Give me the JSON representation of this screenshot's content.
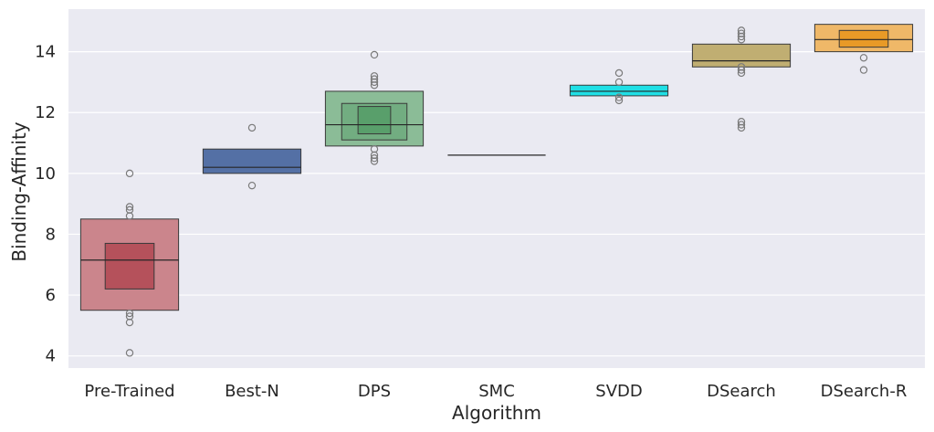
{
  "chart_data": {
    "type": "boxen",
    "title": "",
    "xlabel": "Algorithm",
    "ylabel": "Binding-Affinity",
    "ylim": [
      3.6,
      15.4
    ],
    "yticks": [
      4,
      6,
      8,
      10,
      12,
      14
    ],
    "grid": true,
    "categories": [
      "Pre-Trained",
      "Best-N",
      "DPS",
      "SMC",
      "SVDD",
      "DSearch",
      "DSearch-R"
    ],
    "series": [
      {
        "name": "Pre-Trained",
        "color": "#b5515b",
        "median": 7.15,
        "boxes": [
          [
            5.5,
            8.5
          ],
          [
            6.2,
            7.7
          ]
        ],
        "outliers": [
          4.1,
          5.1,
          5.3,
          5.4,
          8.6,
          8.8,
          8.9,
          10.0
        ]
      },
      {
        "name": "Best-N",
        "color": "#5470a5",
        "median": 10.2,
        "boxes": [
          [
            10.0,
            10.8
          ]
        ],
        "outliers": [
          9.6,
          11.5
        ]
      },
      {
        "name": "DPS",
        "color": "#599f6b",
        "median": 11.6,
        "boxes": [
          [
            10.9,
            12.7
          ],
          [
            11.1,
            12.3
          ],
          [
            11.3,
            12.2
          ]
        ],
        "outliers": [
          10.4,
          10.5,
          10.6,
          10.8,
          12.9,
          13.0,
          13.1,
          13.2,
          13.9
        ]
      },
      {
        "name": "SMC",
        "color": "#4c4c4c",
        "median": 10.6,
        "boxes": [],
        "outliers": []
      },
      {
        "name": "SVDD",
        "color": "#1fdfe5",
        "median": 12.7,
        "boxes": [
          [
            12.55,
            12.9
          ]
        ],
        "outliers": [
          12.4,
          12.5,
          13.0,
          13.3
        ]
      },
      {
        "name": "DSearch",
        "color": "#c0ae72",
        "median": 13.7,
        "boxes": [
          [
            13.5,
            14.25
          ]
        ],
        "outliers": [
          11.5,
          11.6,
          11.7,
          13.3,
          13.4,
          13.5,
          14.4,
          14.5,
          14.6,
          14.7
        ]
      },
      {
        "name": "DSearch-R",
        "color": "#e89a27",
        "median": 14.4,
        "boxes": [
          [
            14.0,
            14.9
          ],
          [
            14.15,
            14.7
          ]
        ],
        "outliers": [
          13.4,
          13.8
        ]
      }
    ]
  }
}
